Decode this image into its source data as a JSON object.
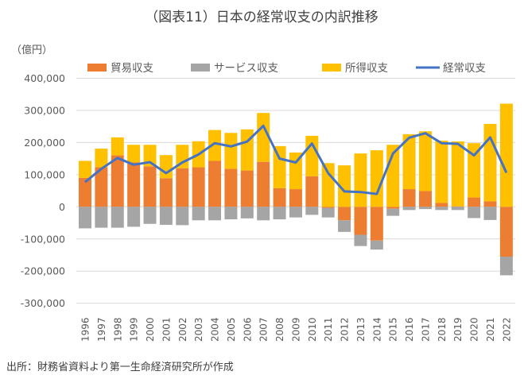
{
  "chart_data": {
    "type": "bar",
    "stacked": true,
    "title": "（図表11）日本の経常収支の内訳推移",
    "ylabel": "（億円）",
    "source": "出所：財務省資料より第一生命経済研究所が作成",
    "ylim": [
      -300000,
      400000
    ],
    "yticks": [
      400000,
      300000,
      200000,
      100000,
      0,
      -100000,
      -200000,
      -300000
    ],
    "ytick_labels": [
      "400,000",
      "300,000",
      "200,000",
      "100,000",
      "0",
      "-100,000",
      "-200,000",
      "-300,000"
    ],
    "grid": true,
    "legend_position": "top",
    "categories": [
      "1996",
      "1997",
      "1998",
      "1999",
      "2000",
      "2001",
      "2002",
      "2003",
      "2004",
      "2005",
      "2006",
      "2007",
      "2008",
      "2009",
      "2010",
      "2011",
      "2012",
      "2013",
      "2014",
      "2015",
      "2016",
      "2017",
      "2018",
      "2019",
      "2020",
      "2021",
      "2022"
    ],
    "series": [
      {
        "name": "貿易収支",
        "kind": "bar",
        "color": "#ED7D31",
        "values": [
          90000,
          123000,
          160000,
          138000,
          126000,
          89000,
          120000,
          123000,
          143000,
          118000,
          113000,
          140000,
          58000,
          55000,
          95000,
          -3000,
          -42000,
          -87000,
          -105000,
          -6000,
          55000,
          49000,
          12000,
          1500,
          29000,
          17000,
          -155000
        ]
      },
      {
        "name": "サービス収支",
        "kind": "bar",
        "color": "#A5A5A5",
        "values": [
          -67000,
          -65000,
          -65000,
          -62000,
          -53000,
          -56000,
          -57000,
          -42000,
          -42000,
          -39000,
          -36000,
          -42000,
          -39000,
          -33000,
          -25000,
          -30000,
          -36000,
          -35000,
          -28000,
          -22000,
          -10000,
          -7000,
          -10000,
          -10000,
          -35000,
          -41000,
          -58000
        ]
      },
      {
        "name": "所得収支",
        "kind": "bar",
        "color": "#FFC000",
        "values": [
          53000,
          58000,
          56000,
          55000,
          67000,
          72000,
          73000,
          81000,
          96000,
          112000,
          128000,
          152000,
          131000,
          114000,
          126000,
          136000,
          129000,
          166000,
          176000,
          193000,
          171000,
          186000,
          194000,
          202000,
          169000,
          241000,
          321000
        ]
      },
      {
        "name": "経常収支",
        "kind": "line",
        "color": "#4472C4",
        "values": [
          77000,
          118000,
          152000,
          131000,
          139000,
          105000,
          138000,
          163000,
          198000,
          188000,
          203000,
          252000,
          150000,
          138000,
          197000,
          105000,
          48000,
          46000,
          40000,
          166000,
          215000,
          229000,
          198000,
          196000,
          160000,
          216000,
          106000
        ]
      }
    ]
  }
}
